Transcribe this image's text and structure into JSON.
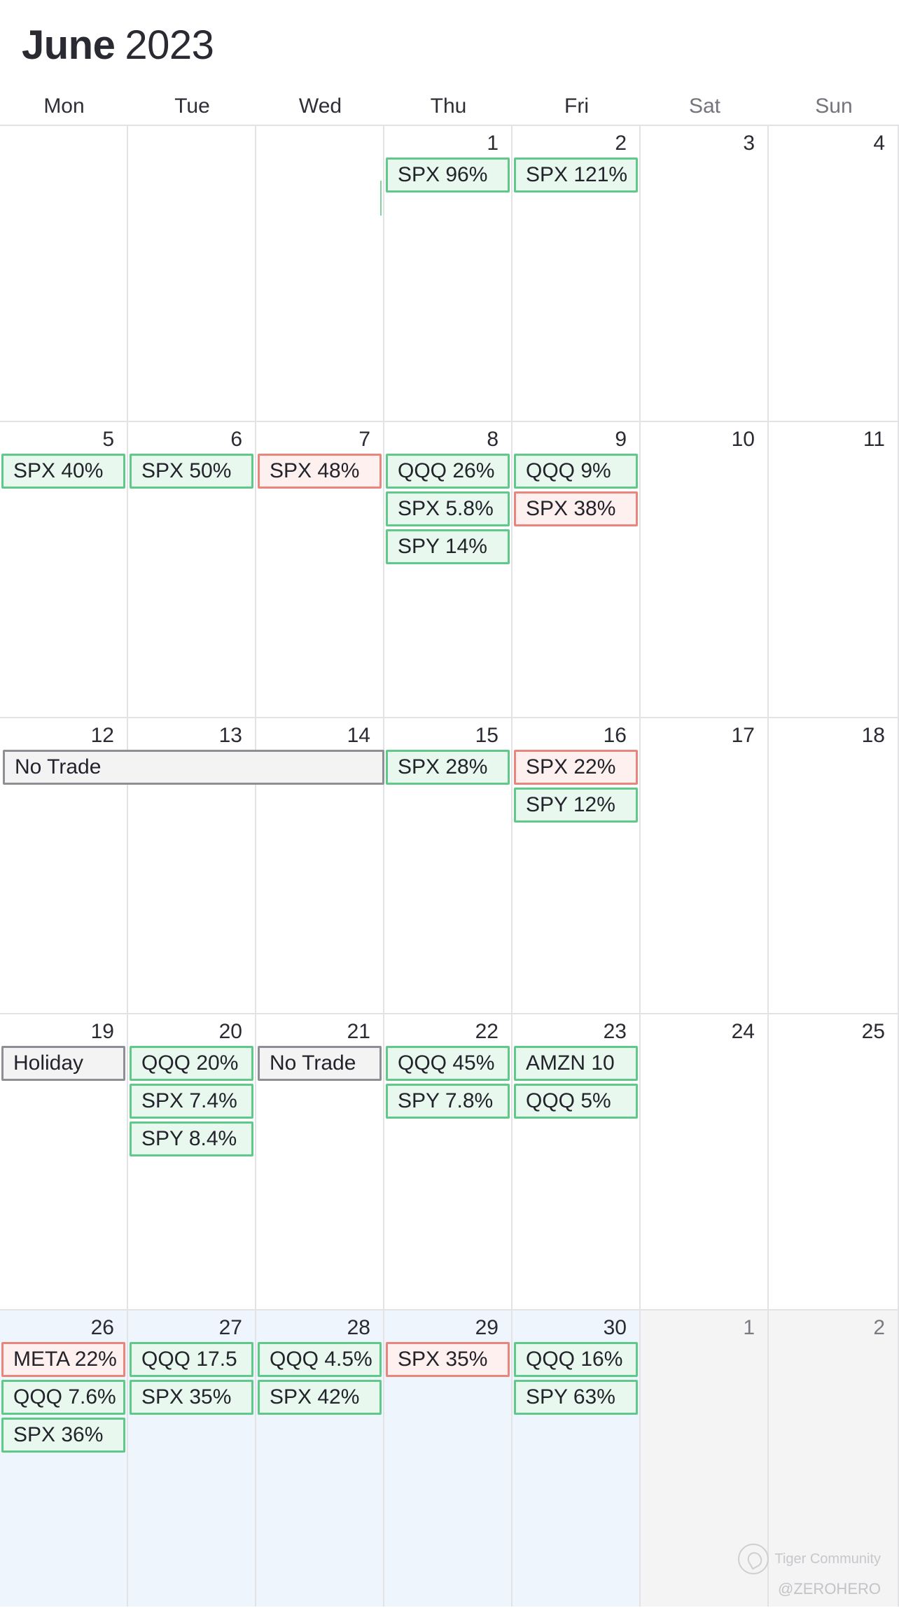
{
  "header": {
    "month": "June",
    "year": "2023"
  },
  "weekdays": [
    "Mon",
    "Tue",
    "Wed",
    "Thu",
    "Fri",
    "Sat",
    "Sun"
  ],
  "colors": {
    "gain": "#60c98a",
    "loss": "#e8857c",
    "neutral": "#8e8e94",
    "current_week": "#eef5fd",
    "other_month": "#f4f4f5"
  },
  "weeks": [
    {
      "days": [
        {
          "num": "",
          "events": []
        },
        {
          "num": "",
          "events": []
        },
        {
          "num": "",
          "events": []
        },
        {
          "num": "1",
          "events": [
            {
              "label": "SPX 96%",
              "kind": "gain"
            }
          ]
        },
        {
          "num": "2",
          "events": [
            {
              "label": "SPX 121%",
              "kind": "gain"
            }
          ]
        },
        {
          "num": "3",
          "events": []
        },
        {
          "num": "4",
          "events": []
        }
      ]
    },
    {
      "days": [
        {
          "num": "5",
          "events": [
            {
              "label": "SPX 40%",
              "kind": "gain"
            }
          ]
        },
        {
          "num": "6",
          "events": [
            {
              "label": "SPX 50%",
              "kind": "gain"
            }
          ]
        },
        {
          "num": "7",
          "events": [
            {
              "label": "SPX 48%",
              "kind": "loss"
            }
          ]
        },
        {
          "num": "8",
          "events": [
            {
              "label": "QQQ 26%",
              "kind": "gain"
            },
            {
              "label": "SPX 5.8%",
              "kind": "gain"
            },
            {
              "label": "SPY 14%",
              "kind": "gain"
            }
          ]
        },
        {
          "num": "9",
          "events": [
            {
              "label": "QQQ 9%",
              "kind": "gain"
            },
            {
              "label": "SPX 38%",
              "kind": "loss"
            }
          ]
        },
        {
          "num": "10",
          "events": []
        },
        {
          "num": "11",
          "events": []
        }
      ]
    },
    {
      "span": {
        "label": "No Trade",
        "kind": "neutral",
        "start": 0,
        "length": 3
      },
      "days": [
        {
          "num": "12",
          "events": []
        },
        {
          "num": "13",
          "events": []
        },
        {
          "num": "14",
          "events": []
        },
        {
          "num": "15",
          "events": [
            {
              "label": "SPX 28%",
              "kind": "gain"
            }
          ]
        },
        {
          "num": "16",
          "events": [
            {
              "label": "SPX 22%",
              "kind": "loss"
            },
            {
              "label": "SPY 12%",
              "kind": "gain"
            }
          ]
        },
        {
          "num": "17",
          "events": []
        },
        {
          "num": "18",
          "events": []
        }
      ]
    },
    {
      "days": [
        {
          "num": "19",
          "events": [
            {
              "label": "Holiday",
              "kind": "neutral"
            }
          ]
        },
        {
          "num": "20",
          "events": [
            {
              "label": "QQQ 20%",
              "kind": "gain"
            },
            {
              "label": "SPX 7.4%",
              "kind": "gain"
            },
            {
              "label": "SPY 8.4%",
              "kind": "gain"
            }
          ]
        },
        {
          "num": "21",
          "events": [
            {
              "label": "No Trade",
              "kind": "neutral"
            }
          ]
        },
        {
          "num": "22",
          "events": [
            {
              "label": "QQQ 45%",
              "kind": "gain"
            },
            {
              "label": "SPY 7.8%",
              "kind": "gain"
            }
          ]
        },
        {
          "num": "23",
          "events": [
            {
              "label": "AMZN 10",
              "kind": "gain"
            },
            {
              "label": "QQQ 5%",
              "kind": "gain"
            }
          ]
        },
        {
          "num": "24",
          "events": []
        },
        {
          "num": "25",
          "events": []
        }
      ]
    },
    {
      "current": true,
      "days": [
        {
          "num": "26",
          "events": [
            {
              "label": "META 22%",
              "kind": "loss"
            },
            {
              "label": "QQQ 7.6%",
              "kind": "gain"
            },
            {
              "label": "SPX 36%",
              "kind": "gain"
            }
          ]
        },
        {
          "num": "27",
          "events": [
            {
              "label": "QQQ 17.5",
              "kind": "gain"
            },
            {
              "label": "SPX 35%",
              "kind": "gain"
            }
          ]
        },
        {
          "num": "28",
          "events": [
            {
              "label": "QQQ 4.5%",
              "kind": "gain"
            },
            {
              "label": "SPX 42%",
              "kind": "gain"
            }
          ]
        },
        {
          "num": "29",
          "events": [
            {
              "label": "SPX 35%",
              "kind": "loss"
            }
          ]
        },
        {
          "num": "30",
          "events": [
            {
              "label": "QQQ 16%",
              "kind": "gain"
            },
            {
              "label": "SPY 63%",
              "kind": "gain"
            }
          ]
        },
        {
          "num": "1",
          "other": true,
          "events": []
        },
        {
          "num": "2",
          "other": true,
          "events": []
        }
      ]
    }
  ],
  "watermark": {
    "brand": "Tiger Community",
    "user": "@ZEROHERO"
  }
}
